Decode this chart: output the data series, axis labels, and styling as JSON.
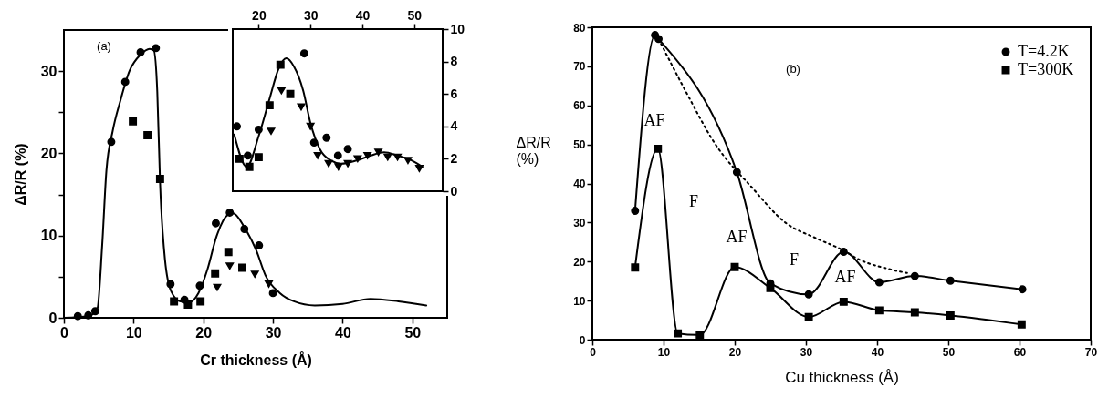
{
  "chart_data": [
    {
      "type": "scatter",
      "xlabel": "Cr thickness (Å)",
      "ylabel": "ΔR/R (%)",
      "annotations": [
        "(a)"
      ],
      "xlim": [
        0,
        55
      ],
      "xticks": [
        0,
        10,
        20,
        30,
        40,
        50
      ],
      "ylim": [
        0,
        35
      ],
      "yticks": [
        0,
        {
          "value": 5,
          "label": null
        },
        10,
        {
          "value": 15,
          "label": null
        },
        20,
        {
          "value": 25,
          "label": null
        },
        30
      ],
      "series": [
        {
          "type": "line",
          "color": "#000000",
          "marker": "none",
          "x": [
            0,
            3.5,
            4.8,
            5.5,
            6.1,
            7,
            8.1,
            9.4,
            11,
            12.3,
            12.9,
            13.4,
            13.8,
            14.5,
            15.4,
            16.7,
            18,
            19.3,
            20.6,
            21.9,
            23.5,
            24.3,
            25.9,
            27.6,
            28.9,
            31,
            33,
            36,
            40,
            44,
            48,
            52
          ],
          "values": [
            0,
            0.2,
            1.1,
            8.9,
            17.9,
            22.7,
            26.4,
            30,
            32,
            32.7,
            32.5,
            27.5,
            16.4,
            7.1,
            3.2,
            2,
            1.9,
            3,
            5.9,
            9.9,
            12.5,
            12.7,
            11,
            8.2,
            5.2,
            3,
            2,
            1.5,
            1.7,
            2.3,
            2,
            1.5
          ]
        },
        {
          "color": "#000000",
          "marker": "circle",
          "x": [
            2,
            3.5,
            4.5,
            6.8,
            8.8,
            11,
            13.2,
            15.3,
            17.3,
            19.5,
            21.8,
            23.8,
            25.9,
            28,
            30
          ],
          "values": [
            0.2,
            0.3,
            0.8,
            21.4,
            28.7,
            32.3,
            32.8,
            4.1,
            2.2,
            3.9,
            11.5,
            12.8,
            10.8,
            8.8,
            3
          ]
        },
        {
          "color": "#000000",
          "marker": "square",
          "x": [
            9.9,
            12,
            13.8,
            15.8,
            17.8,
            19.6,
            21.7,
            23.6,
            25.6
          ],
          "values": [
            23.9,
            22.2,
            16.9,
            2,
            1.6,
            2,
            5.4,
            8,
            6.1
          ]
        },
        {
          "color": "#000000",
          "marker": "triangle",
          "x": [
            22,
            23.8,
            27.4,
            29.4
          ],
          "values": [
            3.7,
            6.3,
            5.3,
            4.1
          ]
        }
      ]
    },
    {
      "type": "scatter",
      "xlim": [
        15,
        55.5
      ],
      "xticks": [
        20,
        30,
        40,
        50
      ],
      "ylim": [
        0,
        10
      ],
      "yticks": [
        0,
        2,
        4,
        6,
        8,
        10
      ],
      "series": [
        {
          "type": "line",
          "color": "#000000",
          "marker": "none",
          "x": [
            15.3,
            17.7,
            20,
            22.1,
            23.9,
            25.3,
            26.8,
            28.6,
            30,
            31.8,
            33.9,
            35.9,
            38.9,
            41.6,
            44.2,
            46.8,
            49.5,
            51.6
          ],
          "values": [
            3.5,
            1.5,
            3.4,
            5.7,
            7.6,
            8.2,
            7.7,
            6.2,
            4.2,
            2.6,
            1.9,
            1.7,
            1.9,
            2.2,
            2.4,
            2.2,
            1.9,
            1.5
          ]
        },
        {
          "color": "#000000",
          "marker": "circle",
          "x": [
            15.8,
            17.9,
            20,
            28.8,
            30.7,
            33.1,
            35.3,
            37.2
          ],
          "values": [
            4,
            2.2,
            3.8,
            8.5,
            3.0,
            3.3,
            2.2,
            2.6
          ]
        },
        {
          "color": "#000000",
          "marker": "square",
          "x": [
            16.3,
            18.2,
            20,
            22.1,
            24.2,
            26.1
          ],
          "values": [
            2,
            1.5,
            2.1,
            5.3,
            7.8,
            6.0
          ]
        },
        {
          "color": "#000000",
          "marker": "triangle",
          "x": [
            22.4,
            24.4,
            28.2,
            30,
            31.4,
            33.5,
            35.4,
            37.2,
            39.1,
            41,
            43.1,
            44.9,
            46.8,
            48.8,
            51
          ],
          "values": [
            3.7,
            6.2,
            5.2,
            4.0,
            2.2,
            1.7,
            1.5,
            1.7,
            2.0,
            2.2,
            2.4,
            2.1,
            2.1,
            1.9,
            1.4
          ]
        }
      ]
    },
    {
      "type": "line",
      "xlabel": "Cu thickness (Å)",
      "ylabel": "ΔR/R (%)",
      "legend": "top right",
      "xlim": [
        0,
        70
      ],
      "xticks": [
        0,
        10,
        20,
        30,
        40,
        50,
        60,
        70
      ],
      "ylim": [
        0,
        80
      ],
      "yticks": [
        0,
        10,
        20,
        30,
        40,
        50,
        60,
        70,
        80
      ],
      "annotations": [
        "(b)",
        "AF",
        "F",
        "AF",
        "F",
        "AF"
      ],
      "series": [
        {
          "name": "T=4.2K",
          "color": "#000000",
          "marker": "circle",
          "x": [
            6,
            8.8,
            9.3,
            20.3,
            25,
            30.4,
            35.3,
            40.3,
            45.3,
            50.3,
            60.4
          ],
          "values": [
            33,
            78,
            77,
            42.9,
            14.4,
            11.6,
            22.5,
            14.7,
            16.3,
            15.1,
            12.9
          ]
        },
        {
          "name": "T=300K",
          "color": "#000000",
          "marker": "square",
          "x": [
            6,
            9.2,
            12,
            15.1,
            20,
            25,
            30.4,
            35.3,
            40.3,
            45.3,
            50.3,
            60.3
          ],
          "values": [
            18.5,
            48.9,
            1.6,
            1.2,
            18.6,
            13.2,
            5.8,
            9.7,
            7.5,
            7.0,
            6.2,
            3.9
          ]
        },
        {
          "color": "#000000",
          "marker": "none",
          "line_style": "dotted",
          "x": [
            9.3,
            13,
            17.3,
            22.4,
            27.1,
            31.4,
            35.1,
            37.5,
            41.4,
            44.4
          ],
          "values": [
            77,
            64,
            50,
            39,
            30,
            26,
            23,
            20.5,
            18.2,
            17
          ]
        }
      ]
    }
  ]
}
